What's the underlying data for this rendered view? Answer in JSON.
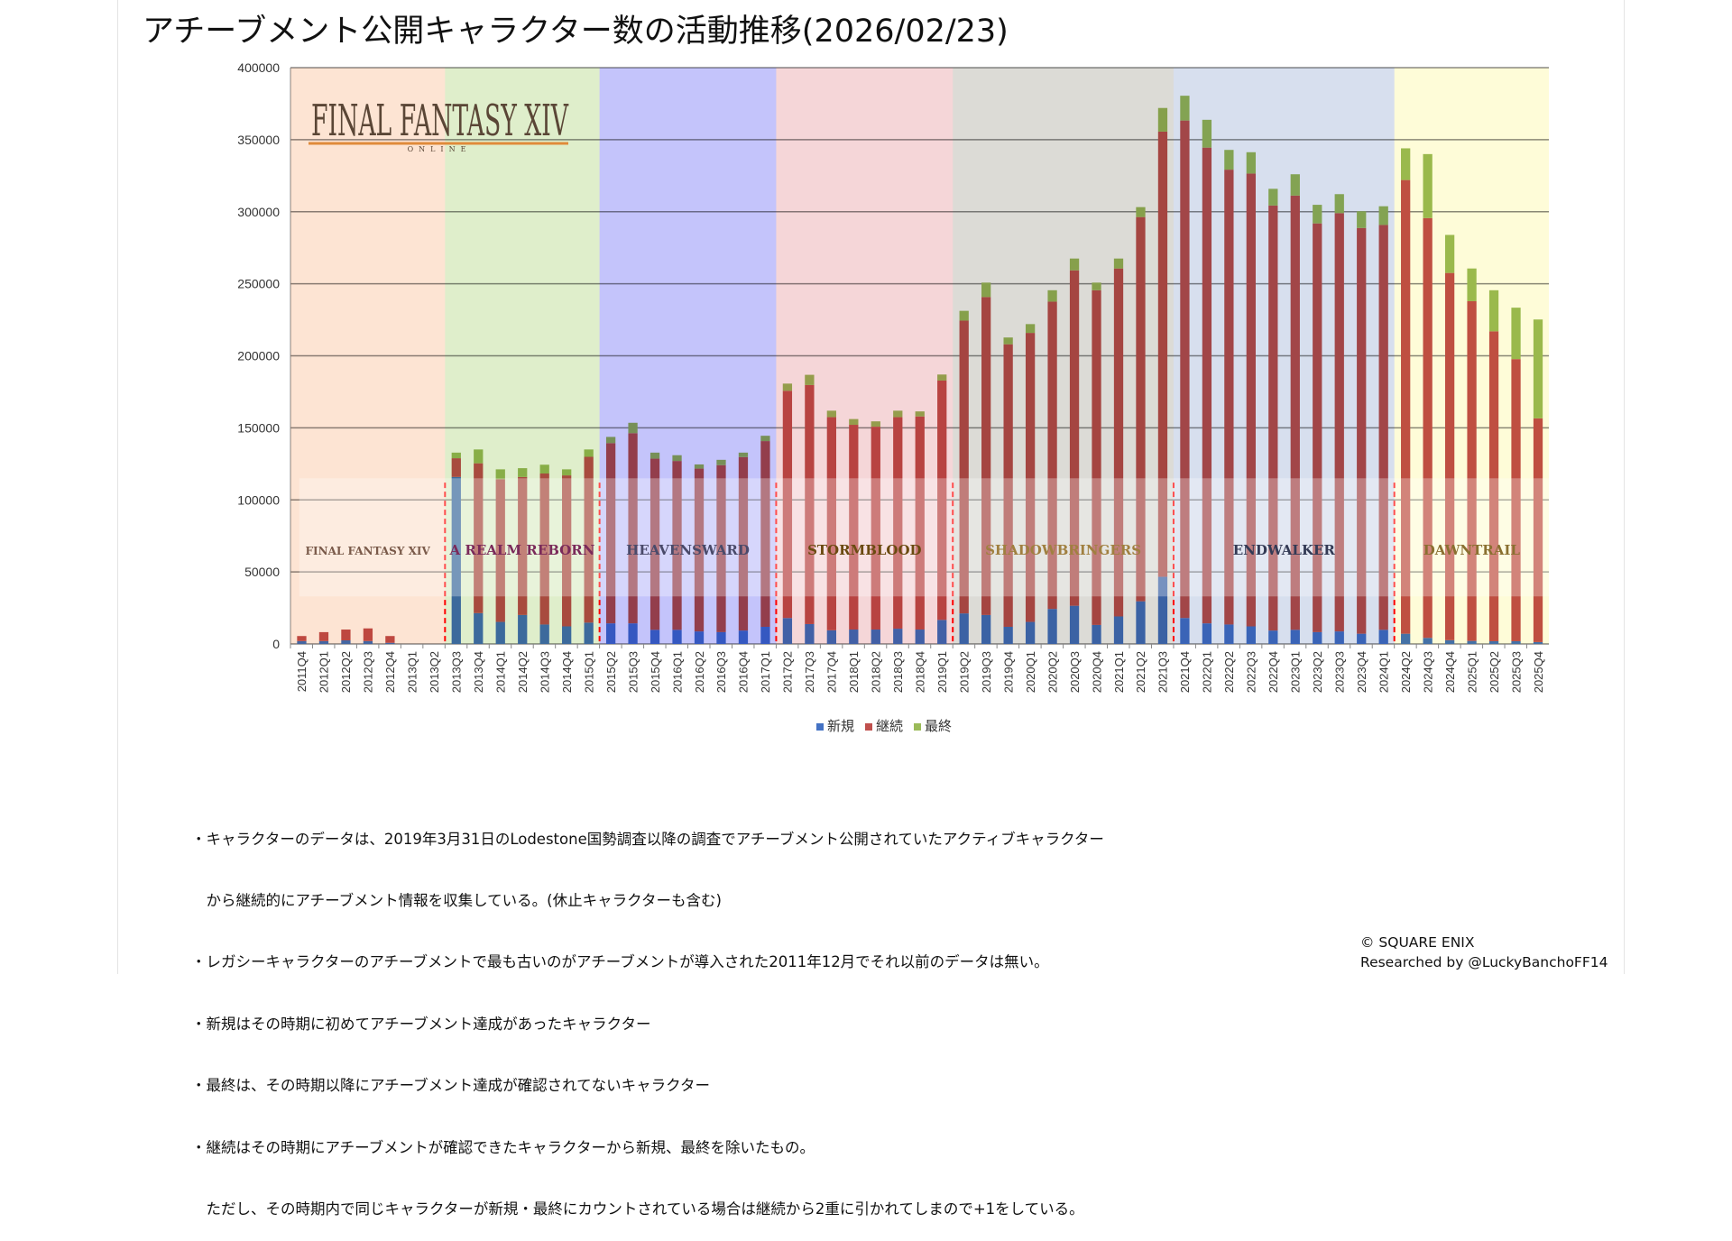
{
  "title": "アチーブメント公開キャラクター数の活動推移(2026/02/23)",
  "header_logo": {
    "main": "FINAL FANTASY XIV",
    "sub": "ONLINE"
  },
  "chart_data": {
    "type": "bar",
    "stacked": true,
    "title": "アチーブメント公開キャラクター数の活動推移(2026/02/23)",
    "ylim": [
      0,
      400000
    ],
    "yticks": [
      0,
      50000,
      100000,
      150000,
      200000,
      250000,
      300000,
      350000,
      400000
    ],
    "grid": true,
    "legend_position": "bottom",
    "categories": [
      "2011Q4",
      "2012Q1",
      "2012Q2",
      "2012Q3",
      "2012Q4",
      "2013Q1",
      "2013Q2",
      "2013Q3",
      "2013Q4",
      "2014Q1",
      "2014Q2",
      "2014Q3",
      "2014Q4",
      "2015Q1",
      "2015Q2",
      "2015Q3",
      "2015Q4",
      "2016Q1",
      "2016Q2",
      "2016Q3",
      "2016Q4",
      "2017Q1",
      "2017Q2",
      "2017Q3",
      "2017Q4",
      "2018Q1",
      "2018Q2",
      "2018Q3",
      "2018Q4",
      "2019Q1",
      "2019Q2",
      "2019Q3",
      "2019Q4",
      "2020Q1",
      "2020Q2",
      "2020Q3",
      "2020Q4",
      "2021Q1",
      "2021Q2",
      "2021Q3",
      "2021Q4",
      "2022Q1",
      "2022Q2",
      "2022Q3",
      "2022Q4",
      "2023Q1",
      "2023Q2",
      "2023Q3",
      "2023Q4",
      "2024Q1",
      "2024Q2",
      "2024Q3",
      "2024Q4",
      "2025Q1",
      "2025Q2",
      "2025Q3",
      "2025Q4"
    ],
    "series": [
      {
        "name": "新規",
        "color": "#4472c4",
        "values": [
          2000,
          2000,
          2500,
          2000,
          800,
          0,
          0,
          115900,
          21400,
          15300,
          20100,
          13500,
          12200,
          14800,
          14300,
          14300,
          9800,
          9800,
          8700,
          8200,
          9300,
          11900,
          18000,
          13800,
          9500,
          10000,
          10000,
          10600,
          10000,
          16700,
          21200,
          20100,
          11900,
          15300,
          24300,
          26500,
          13200,
          19100,
          29600,
          46600,
          18000,
          14300,
          13500,
          12200,
          9300,
          9800,
          8200,
          8700,
          7100,
          9800,
          7100,
          4200,
          2600,
          2100,
          1900,
          1900,
          1300
        ]
      },
      {
        "name": "継続",
        "color": "#c0504d",
        "values": [
          3500,
          6200,
          7500,
          8800,
          4700,
          0,
          0,
          13000,
          104000,
          99000,
          95800,
          104800,
          104800,
          115100,
          125100,
          132000,
          118800,
          117200,
          113000,
          115900,
          120400,
          128900,
          157700,
          165900,
          147900,
          142100,
          140800,
          146800,
          147900,
          166100,
          203200,
          220700,
          196100,
          200600,
          213300,
          232800,
          232300,
          241500,
          266700,
          309000,
          345300,
          330200,
          315700,
          314300,
          295000,
          301400,
          283700,
          290300,
          281600,
          281000,
          314900,
          291400,
          254900,
          235800,
          215100,
          195800,
          155300
        ]
      },
      {
        "name": "最終",
        "color": "#9bbb59",
        "values": [
          0,
          0,
          0,
          0,
          0,
          0,
          0,
          3900,
          9600,
          6900,
          6100,
          6100,
          4200,
          5100,
          4300,
          7200,
          4200,
          4000,
          2900,
          3700,
          3100,
          3700,
          5000,
          7100,
          4500,
          4000,
          3700,
          4500,
          3500,
          4200,
          6800,
          10000,
          4700,
          6100,
          7900,
          8200,
          5300,
          6900,
          6900,
          16400,
          17200,
          19300,
          13700,
          14800,
          11600,
          14800,
          12900,
          13200,
          11600,
          13000,
          22000,
          44400,
          26400,
          22700,
          28500,
          35700,
          68600
        ]
      }
    ],
    "eras": [
      {
        "name": "FINAL FANTASY XIV",
        "start": "2011Q4",
        "end": "2013Q2",
        "color": "#fde4d3"
      },
      {
        "name": "A REALM REBORN",
        "start": "2013Q3",
        "end": "2015Q1",
        "color": "#dfeecb"
      },
      {
        "name": "HEAVENSWARD",
        "start": "2015Q2",
        "end": "2017Q1",
        "color": "#c4c4fb"
      },
      {
        "name": "STORMBLOOD",
        "start": "2017Q2",
        "end": "2019Q1",
        "color": "#f5d6d8"
      },
      {
        "name": "SHADOWBRINGERS",
        "start": "2019Q2",
        "end": "2021Q3",
        "color": "#dcdbd6"
      },
      {
        "name": "ENDWALKER",
        "start": "2021Q4",
        "end": "2024Q1",
        "color": "#d7dfee"
      },
      {
        "name": "DAWNTRAIL",
        "start": "2024Q2",
        "end": "2025Q4",
        "color": "#fefcd8"
      }
    ]
  },
  "notes": [
    "・キャラクターのデータは、2019年3月31日のLodestone国勢調査以降の調査でアチーブメント公開されていたアクティブキャラクター",
    "　から継続的にアチーブメント情報を収集している。(休止キャラクターも含む)",
    "・レガシーキャラクターのアチーブメントで最も古いのがアチーブメントが導入された2011年12月でそれ以前のデータは無い。",
    "・新規はその時期に初めてアチーブメント達成があったキャラクター",
    "・最終は、その時期以降にアチーブメント達成が確認されてないキャラクター",
    "・継続はその時期にアチーブメントが確認できたキャラクターから新規、最終を除いたもの。",
    "　ただし、その時期内で同じキャラクターが新規・最終にカウントされている場合は継続から2重に引かれてしまので+1をしている。"
  ],
  "credits": {
    "copyright": "© SQUARE ENIX",
    "researcher": "Researched by @LuckyBanchoFF14"
  }
}
